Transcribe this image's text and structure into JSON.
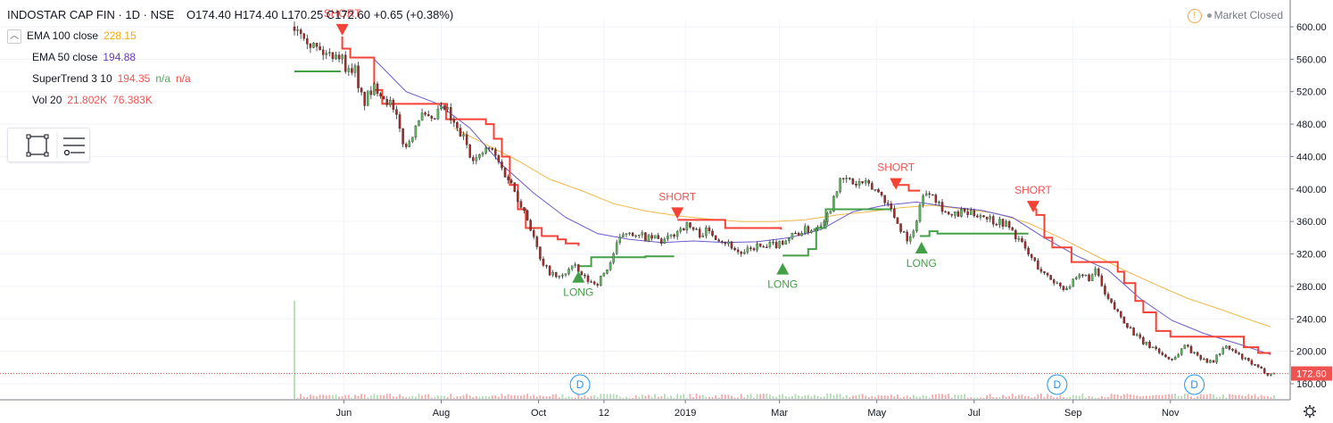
{
  "header": {
    "symbol": "INDOSTAR CAP FIN · 1D · NSE",
    "ohlc": "O174.40 H174.40 L170.25 C172.60 +0.65 (+0.38%)"
  },
  "indicators": [
    {
      "name": "EMA 100 close",
      "values": [
        "228.15"
      ],
      "colors": [
        "#f2a900"
      ]
    },
    {
      "name": "EMA 50 close",
      "values": [
        "194.88"
      ],
      "colors": [
        "#673ab7"
      ]
    },
    {
      "name": "SuperTrend 3 10",
      "values": [
        "194.35",
        "n/a",
        "n/a"
      ],
      "colors": [
        "#ef5350",
        "#4caf50",
        "#ef5350"
      ]
    },
    {
      "name": "Vol 20",
      "values": [
        "21.802K",
        "76.383K"
      ],
      "colors": [
        "#ef5350",
        "#ef5350"
      ]
    }
  ],
  "market_status": "Market Closed",
  "last_price_label": "172.60",
  "colors": {
    "up": "#4caf50",
    "down": "#ef5350",
    "ema100": "#f2b84b",
    "ema50": "#6a5acd",
    "st_bear": "#f44336",
    "st_bull": "#43a047",
    "price_line": "#ef5350",
    "event": "#2196f3"
  },
  "chart_data": {
    "type": "candlestick",
    "title": "INDOSTAR CAP FIN · 1D · NSE",
    "y_ticks": [
      "160.00",
      "200.00",
      "240.00",
      "280.00",
      "320.00",
      "360.00",
      "400.00",
      "440.00",
      "480.00",
      "520.00",
      "560.00",
      "600.00"
    ],
    "ylim": [
      150,
      610
    ],
    "x_ticks": [
      "Jun",
      "Aug",
      "Oct",
      "12",
      "2019",
      "Mar",
      "May",
      "Jul",
      "Sep",
      "Nov"
    ],
    "x_tick_days": [
      31,
      92,
      153,
      194,
      245,
      304,
      365,
      426,
      488,
      549
    ],
    "last_day": 614,
    "close_path": [
      [
        0,
        600
      ],
      [
        5,
        598
      ],
      [
        10,
        580
      ],
      [
        16,
        570
      ],
      [
        22,
        565
      ],
      [
        26,
        570
      ],
      [
        30,
        560
      ],
      [
        35,
        540
      ],
      [
        37,
        560
      ],
      [
        40,
        520
      ],
      [
        44,
        508
      ],
      [
        48,
        520
      ],
      [
        52,
        525
      ],
      [
        56,
        515
      ],
      [
        60,
        505
      ],
      [
        64,
        485
      ],
      [
        67,
        465
      ],
      [
        70,
        450
      ],
      [
        74,
        470
      ],
      [
        78,
        490
      ],
      [
        82,
        488
      ],
      [
        86,
        480
      ],
      [
        90,
        495
      ],
      [
        95,
        500
      ],
      [
        99,
        480
      ],
      [
        103,
        470
      ],
      [
        107,
        460
      ],
      [
        110,
        445
      ],
      [
        115,
        435
      ],
      [
        118,
        445
      ],
      [
        122,
        450
      ],
      [
        126,
        440
      ],
      [
        130,
        425
      ],
      [
        135,
        410
      ],
      [
        140,
        390
      ],
      [
        145,
        370
      ],
      [
        150,
        340
      ],
      [
        155,
        305
      ],
      [
        159,
        300
      ],
      [
        163,
        292
      ],
      [
        167,
        290
      ],
      [
        171,
        300
      ],
      [
        175,
        305
      ],
      [
        179,
        295
      ],
      [
        182,
        290
      ],
      [
        186,
        285
      ],
      [
        190,
        285
      ],
      [
        194,
        295
      ],
      [
        198,
        310
      ],
      [
        202,
        330
      ],
      [
        206,
        345
      ],
      [
        210,
        350
      ],
      [
        214,
        340
      ],
      [
        218,
        342
      ],
      [
        222,
        338
      ],
      [
        226,
        340
      ],
      [
        230,
        335
      ],
      [
        234,
        338
      ],
      [
        238,
        345
      ],
      [
        242,
        352
      ],
      [
        246,
        355
      ],
      [
        250,
        350
      ],
      [
        254,
        345
      ],
      [
        258,
        348
      ],
      [
        262,
        345
      ],
      [
        266,
        340
      ],
      [
        270,
        335
      ],
      [
        274,
        330
      ],
      [
        278,
        322
      ],
      [
        282,
        320
      ],
      [
        286,
        326
      ],
      [
        290,
        330
      ],
      [
        294,
        326
      ],
      [
        298,
        330
      ],
      [
        302,
        332
      ],
      [
        306,
        336
      ],
      [
        310,
        340
      ],
      [
        314,
        345
      ],
      [
        318,
        348
      ],
      [
        322,
        350
      ],
      [
        326,
        352
      ],
      [
        330,
        360
      ],
      [
        335,
        370
      ],
      [
        339,
        400
      ],
      [
        343,
        410
      ],
      [
        347,
        412
      ],
      [
        351,
        405
      ],
      [
        355,
        408
      ],
      [
        359,
        404
      ],
      [
        363,
        400
      ],
      [
        367,
        395
      ],
      [
        371,
        385
      ],
      [
        375,
        370
      ],
      [
        379,
        355
      ],
      [
        383,
        342
      ],
      [
        387,
        336
      ],
      [
        391,
        375
      ],
      [
        395,
        395
      ],
      [
        399,
        400
      ],
      [
        403,
        385
      ],
      [
        407,
        375
      ],
      [
        411,
        365
      ],
      [
        415,
        368
      ],
      [
        419,
        372
      ],
      [
        423,
        368
      ],
      [
        427,
        370
      ],
      [
        431,
        368
      ],
      [
        435,
        365
      ],
      [
        439,
        360
      ],
      [
        443,
        360
      ],
      [
        447,
        355
      ],
      [
        451,
        345
      ],
      [
        455,
        335
      ],
      [
        459,
        322
      ],
      [
        463,
        312
      ],
      [
        467,
        302
      ],
      [
        471,
        292
      ],
      [
        475,
        288
      ],
      [
        479,
        282
      ],
      [
        483,
        278
      ],
      [
        487,
        283
      ],
      [
        491,
        290
      ],
      [
        495,
        293
      ],
      [
        499,
        290
      ],
      [
        503,
        300
      ],
      [
        507,
        272
      ],
      [
        511,
        260
      ],
      [
        515,
        250
      ],
      [
        519,
        240
      ],
      [
        523,
        230
      ],
      [
        527,
        220
      ],
      [
        531,
        212
      ],
      [
        535,
        207
      ],
      [
        539,
        205
      ],
      [
        543,
        197
      ],
      [
        547,
        192
      ],
      [
        551,
        190
      ],
      [
        555,
        200
      ],
      [
        559,
        210
      ],
      [
        563,
        197
      ],
      [
        567,
        194
      ],
      [
        571,
        190
      ],
      [
        575,
        185
      ],
      [
        579,
        197
      ],
      [
        583,
        205
      ],
      [
        587,
        202
      ],
      [
        591,
        196
      ],
      [
        595,
        190
      ],
      [
        599,
        186
      ],
      [
        603,
        180
      ],
      [
        607,
        176
      ],
      [
        611,
        172
      ],
      [
        614,
        172.6
      ]
    ],
    "ema100": [
      [
        100,
        475
      ],
      [
        120,
        455
      ],
      [
        140,
        435
      ],
      [
        160,
        412
      ],
      [
        180,
        398
      ],
      [
        200,
        382
      ],
      [
        220,
        373
      ],
      [
        240,
        367
      ],
      [
        260,
        363
      ],
      [
        280,
        360
      ],
      [
        300,
        360
      ],
      [
        320,
        362
      ],
      [
        340,
        368
      ],
      [
        360,
        372
      ],
      [
        380,
        377
      ],
      [
        400,
        380
      ],
      [
        420,
        375
      ],
      [
        440,
        370
      ],
      [
        460,
        358
      ],
      [
        480,
        340
      ],
      [
        500,
        320
      ],
      [
        520,
        300
      ],
      [
        540,
        282
      ],
      [
        560,
        265
      ],
      [
        580,
        252
      ],
      [
        600,
        238
      ],
      [
        612,
        230
      ]
    ],
    "ema50": [
      [
        50,
        560
      ],
      [
        70,
        520
      ],
      [
        90,
        505
      ],
      [
        110,
        475
      ],
      [
        130,
        430
      ],
      [
        150,
        395
      ],
      [
        170,
        365
      ],
      [
        190,
        345
      ],
      [
        210,
        338
      ],
      [
        230,
        334
      ],
      [
        250,
        336
      ],
      [
        270,
        334
      ],
      [
        290,
        335
      ],
      [
        310,
        340
      ],
      [
        330,
        350
      ],
      [
        350,
        372
      ],
      [
        370,
        380
      ],
      [
        390,
        384
      ],
      [
        410,
        378
      ],
      [
        430,
        374
      ],
      [
        450,
        365
      ],
      [
        470,
        340
      ],
      [
        490,
        318
      ],
      [
        510,
        300
      ],
      [
        530,
        265
      ],
      [
        550,
        238
      ],
      [
        570,
        222
      ],
      [
        590,
        210
      ],
      [
        612,
        196
      ]
    ],
    "supertrend_bear": [
      [
        [
          30,
          588
        ],
        [
          30,
          573
        ],
        [
          35,
          573
        ],
        [
          35,
          562
        ],
        [
          50,
          562
        ],
        [
          50,
          522
        ],
        [
          55,
          522
        ],
        [
          55,
          505
        ],
        [
          95,
          505
        ],
        [
          95,
          486
        ],
        [
          120,
          486
        ],
        [
          120,
          480
        ],
        [
          125,
          480
        ],
        [
          125,
          462
        ],
        [
          130,
          462
        ],
        [
          130,
          440
        ],
        [
          135,
          440
        ],
        [
          135,
          405
        ],
        [
          140,
          405
        ],
        [
          140,
          375
        ],
        [
          145,
          375
        ],
        [
          145,
          352
        ],
        [
          155,
          352
        ],
        [
          155,
          342
        ],
        [
          165,
          342
        ],
        [
          165,
          338
        ],
        [
          170,
          338
        ],
        [
          170,
          333
        ],
        [
          178,
          333
        ],
        [
          178,
          330
        ]
      ],
      [
        [
          240,
          362
        ],
        [
          270,
          362
        ],
        [
          270,
          352
        ],
        [
          305,
          352
        ],
        [
          305,
          350
        ]
      ],
      [
        [
          375,
          405
        ],
        [
          385,
          405
        ],
        [
          385,
          398
        ],
        [
          392,
          398
        ]
      ],
      [
        [
          462,
          375
        ],
        [
          465,
          375
        ],
        [
          465,
          368
        ],
        [
          470,
          368
        ],
        [
          470,
          340
        ],
        [
          475,
          340
        ],
        [
          475,
          328
        ],
        [
          487,
          328
        ],
        [
          487,
          310
        ],
        [
          516,
          310
        ],
        [
          516,
          298
        ],
        [
          520,
          298
        ],
        [
          520,
          284
        ],
        [
          527,
          284
        ],
        [
          527,
          262
        ],
        [
          532,
          262
        ],
        [
          532,
          248
        ],
        [
          540,
          248
        ],
        [
          540,
          225
        ],
        [
          549,
          225
        ],
        [
          549,
          218
        ],
        [
          595,
          218
        ],
        [
          595,
          205
        ],
        [
          604,
          205
        ],
        [
          604,
          198
        ],
        [
          612,
          198
        ]
      ]
    ],
    "supertrend_bull": [
      [
        [
          0,
          545
        ],
        [
          29,
          545
        ]
      ],
      [
        [
          178,
          305
        ],
        [
          186,
          305
        ],
        [
          186,
          316
        ],
        [
          220,
          316
        ],
        [
          220,
          317
        ],
        [
          238,
          317
        ]
      ],
      [
        [
          306,
          318
        ],
        [
          322,
          318
        ],
        [
          322,
          326
        ],
        [
          327,
          326
        ],
        [
          327,
          352
        ],
        [
          333,
          352
        ],
        [
          333,
          375
        ],
        [
          374,
          375
        ]
      ],
      [
        [
          392,
          342
        ],
        [
          398,
          342
        ],
        [
          398,
          348
        ],
        [
          403,
          348
        ],
        [
          403,
          345
        ],
        [
          460,
          345
        ]
      ]
    ],
    "signals": [
      {
        "label": "SHORT",
        "type": "short",
        "day": 30,
        "price": 588
      },
      {
        "label": "SHORT",
        "type": "short",
        "day": 240,
        "price": 362
      },
      {
        "label": "SHORT",
        "type": "short",
        "day": 377,
        "price": 398
      },
      {
        "label": "SHORT",
        "type": "short",
        "day": 463,
        "price": 370
      },
      {
        "label": "LONG",
        "type": "long",
        "day": 178,
        "price": 300
      },
      {
        "label": "LONG",
        "type": "long",
        "day": 306,
        "price": 310
      },
      {
        "label": "LONG",
        "type": "long",
        "day": 393,
        "price": 336
      }
    ],
    "events": [
      {
        "label": "D",
        "day": 179
      },
      {
        "label": "D",
        "day": 478
      },
      {
        "label": "D",
        "day": 564
      }
    ],
    "volume": {
      "spike_day": 0,
      "spike_relative": 1.0,
      "typical_relative": 0.05
    }
  }
}
